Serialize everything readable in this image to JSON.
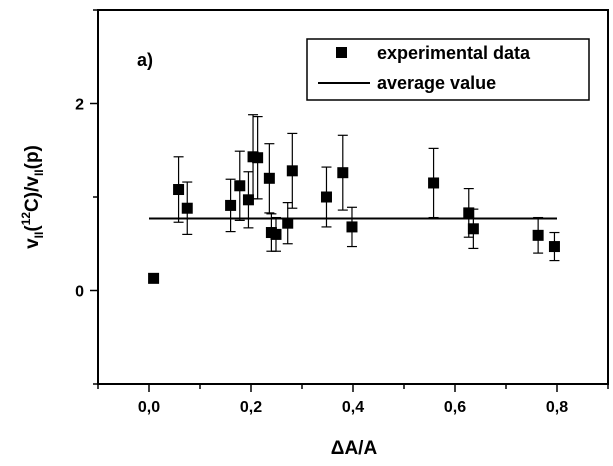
{
  "chart_data": {
    "type": "scatter",
    "panel_label": "a)",
    "xlabel": "ΔA/A",
    "ylabel_parts": {
      "v1": "v",
      "sub1": "II",
      "open": "(",
      "sup": "12",
      "rest": "C)/v",
      "sub2": "II",
      "tail": "(p)"
    },
    "xlim": [
      -0.1,
      0.9
    ],
    "ylim": [
      -1,
      3
    ],
    "x_ticks": [
      0.0,
      0.2,
      0.4,
      0.6,
      0.8
    ],
    "x_tick_labels": [
      "0,0",
      "0,2",
      "0,4",
      "0,6",
      "0,8"
    ],
    "y_ticks": [
      0,
      2
    ],
    "y_tick_labels": [
      "0",
      "2"
    ],
    "legend_position": "top-right",
    "series": [
      {
        "name": "experimental data",
        "marker": "square",
        "color": "#000000",
        "points": [
          {
            "x": 0.009,
            "y": 0.13,
            "err": null
          },
          {
            "x": 0.058,
            "y": 1.08,
            "err": 0.35
          },
          {
            "x": 0.075,
            "y": 0.88,
            "err": 0.28
          },
          {
            "x": 0.16,
            "y": 0.91,
            "err": 0.28
          },
          {
            "x": 0.178,
            "y": 1.12,
            "err": 0.37
          },
          {
            "x": 0.195,
            "y": 0.97,
            "err": 0.3
          },
          {
            "x": 0.204,
            "y": 1.43,
            "err": 0.45
          },
          {
            "x": 0.213,
            "y": 1.42,
            "err": 0.44
          },
          {
            "x": 0.236,
            "y": 1.2,
            "err": 0.37
          },
          {
            "x": 0.24,
            "y": 0.62,
            "err": 0.2
          },
          {
            "x": 0.249,
            "y": 0.6,
            "err": 0.18
          },
          {
            "x": 0.272,
            "y": 0.72,
            "err": 0.22
          },
          {
            "x": 0.281,
            "y": 1.28,
            "err": 0.4
          },
          {
            "x": 0.348,
            "y": 1.0,
            "err": 0.32
          },
          {
            "x": 0.38,
            "y": 1.26,
            "err": 0.4
          },
          {
            "x": 0.398,
            "y": 0.68,
            "err": 0.21
          },
          {
            "x": 0.558,
            "y": 1.15,
            "err": 0.37
          },
          {
            "x": 0.627,
            "y": 0.83,
            "err": 0.26
          },
          {
            "x": 0.636,
            "y": 0.66,
            "err": 0.21
          },
          {
            "x": 0.763,
            "y": 0.59,
            "err": 0.19
          },
          {
            "x": 0.795,
            "y": 0.47,
            "err": 0.15
          }
        ]
      },
      {
        "name": "average value",
        "type": "line",
        "color": "#000000",
        "x": [
          0.0,
          0.8
        ],
        "y": [
          0.77,
          0.77
        ]
      }
    ]
  }
}
